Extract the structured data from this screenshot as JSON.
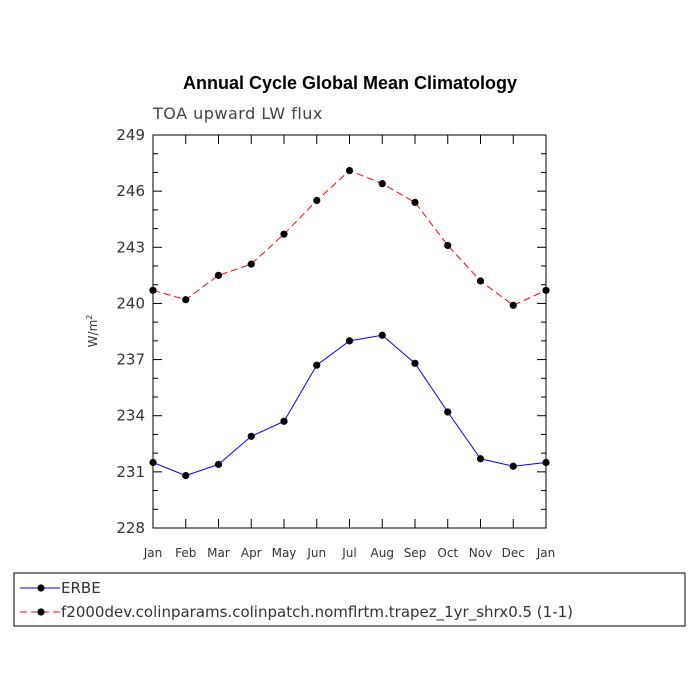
{
  "chart_data": {
    "type": "line",
    "title": "Annual Cycle Global Mean Climatology",
    "subtitle": "TOA upward LW flux",
    "ylabel": "W/m",
    "ylabel_superscript": "2",
    "ylim": [
      228,
      249
    ],
    "yticks": [
      "228",
      "231",
      "234",
      "237",
      "240",
      "243",
      "246",
      "249"
    ],
    "categories": [
      "Jan",
      "Feb",
      "Mar",
      "Apr",
      "May",
      "Jun",
      "Jul",
      "Aug",
      "Sep",
      "Oct",
      "Nov",
      "Dec",
      "Jan"
    ],
    "series": [
      {
        "name": "ERBE",
        "color": "#0000ff",
        "dash": "solid",
        "values": [
          231.5,
          230.8,
          231.4,
          232.9,
          233.7,
          236.7,
          238.0,
          238.3,
          236.8,
          234.2,
          231.7,
          231.3,
          231.5
        ]
      },
      {
        "name": "f2000dev.colinparams.colinpatch.nomflrtm.trapez_1yr_shrx0.5 (1-1)",
        "color": "#ff0000",
        "dash": "dashed",
        "values": [
          240.7,
          240.2,
          241.5,
          242.1,
          243.7,
          245.5,
          247.1,
          246.4,
          245.4,
          243.1,
          241.2,
          239.9,
          240.7
        ]
      }
    ],
    "legend_position": "bottom"
  }
}
